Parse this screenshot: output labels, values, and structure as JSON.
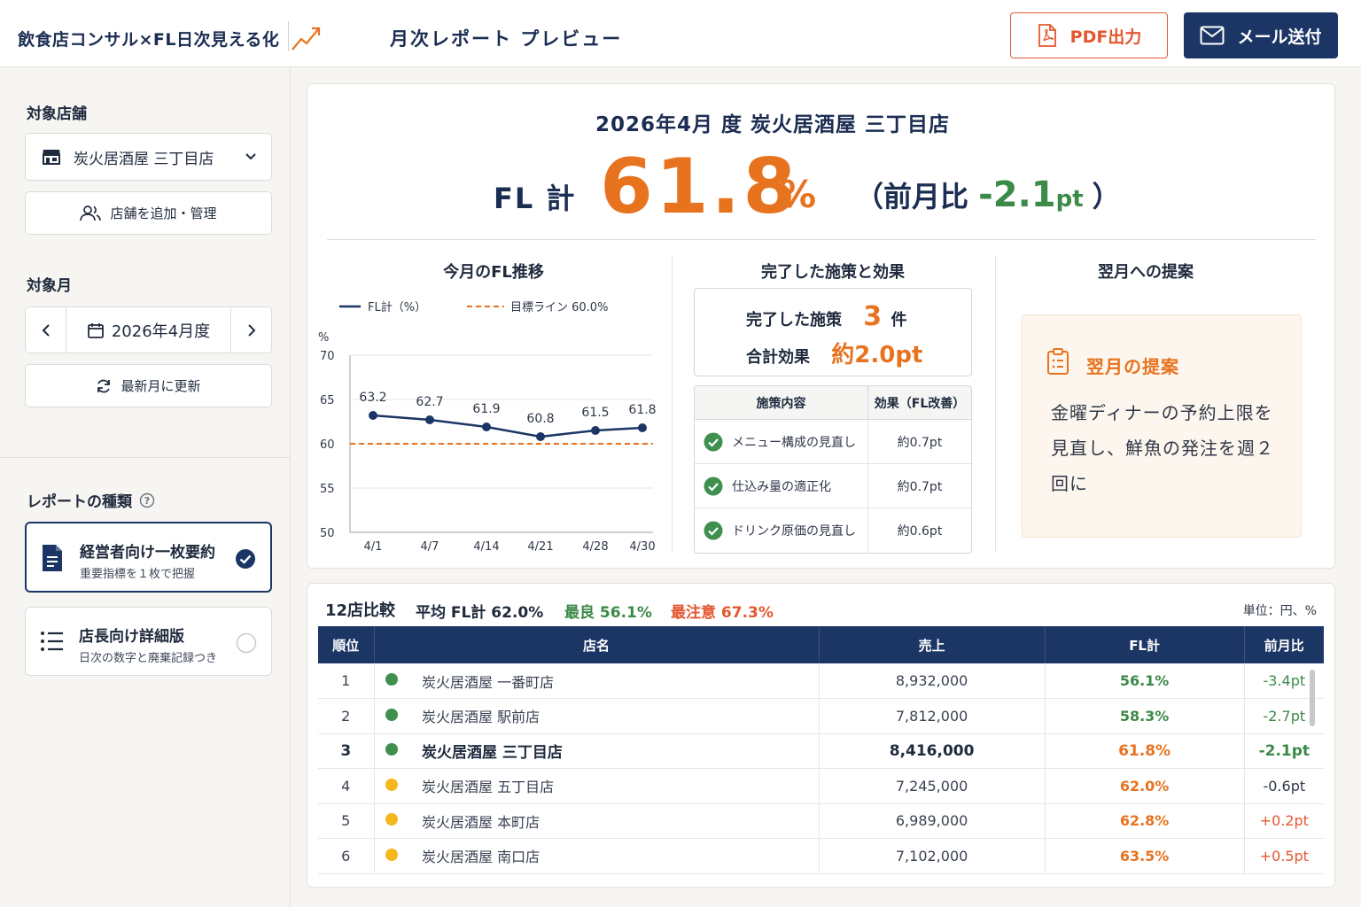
{
  "header": {
    "brand": "飲食店コンサル×FL日次見える化",
    "page_title": "月次レポート プレビュー",
    "pdf_label": "PDF出力",
    "mail_label": "メール送付"
  },
  "sidebar": {
    "store_label": "対象店舗",
    "store_selected": "炭火居酒屋 三丁目店",
    "store_manage": "店舗を追加・管理",
    "month_label": "対象月",
    "month_value": "2026年4月度",
    "refresh_label": "最新月に更新",
    "report_type_label": "レポートの種類",
    "report_types": [
      {
        "title": "経営者向け一枚要約",
        "subtitle": "重要指標を１枚で把握",
        "selected": true
      },
      {
        "title": "店長向け詳細版",
        "subtitle": "日次の数字と廃棄記録つき",
        "selected": false
      }
    ]
  },
  "report": {
    "title": "2026年4月 度 炭火居酒屋 三丁目店",
    "fl_label": "FL 計",
    "fl_value": "61.8",
    "fl_unit": "%",
    "prev_open": "（前月比 ",
    "prev_diff": "-2.1",
    "prev_unit": "pt",
    "prev_close": "）"
  },
  "trend": {
    "section_title": "今月のFL推移",
    "legend_fl": "FL計（%）",
    "legend_target": "目標ライン 60.0%",
    "y_unit": "%"
  },
  "chart_data": {
    "type": "line",
    "x": [
      "4/1",
      "4/7",
      "4/14",
      "4/21",
      "4/28",
      "4/30"
    ],
    "series": [
      {
        "name": "FL計（%）",
        "values": [
          63.2,
          62.7,
          61.9,
          60.8,
          61.5,
          61.8
        ]
      },
      {
        "name": "目標ライン 60.0%",
        "values": [
          60,
          60,
          60,
          60,
          60,
          60
        ]
      }
    ],
    "yticks": [
      50,
      55,
      60,
      65,
      70
    ],
    "ylim": [
      50,
      70
    ],
    "ylabel": "%",
    "colors": {
      "fl": "#1b3565",
      "target": "#e8731f"
    }
  },
  "measures": {
    "section_title": "完了した施策と効果",
    "done_label": "完了した施策",
    "done_count": "3",
    "done_unit": "件",
    "effect_label": "合計効果",
    "effect_value": "約2.0pt",
    "col_content": "施策内容",
    "col_effect": "効果（FL改善）",
    "items": [
      {
        "name": "メニュー構成の見直し",
        "effect": "約0.7pt"
      },
      {
        "name": "仕込み量の適正化",
        "effect": "約0.7pt"
      },
      {
        "name": "ドリンク原価の見直し",
        "effect": "約0.6pt"
      }
    ]
  },
  "proposal": {
    "section_title": "翌月への提案",
    "box_title": "翌月の提案",
    "text": "金曜ディナーの予約上限を見直し、鮮魚の発注を週２回に"
  },
  "comparison": {
    "title": "12店比較",
    "avg": "平均 FL計 62.0%",
    "best": "最良 56.1%",
    "worst": "最注意 67.3%",
    "unit_note": "単位：円、%",
    "headers": [
      "順位",
      "店名",
      "売上",
      "FL計",
      "前月比"
    ],
    "rows": [
      {
        "rank": "1",
        "status": "green",
        "name": "炭火居酒屋 一番町店",
        "sales": "8,932,000",
        "fl": "56.1%",
        "diff": "-3.4pt"
      },
      {
        "rank": "2",
        "status": "green",
        "name": "炭火居酒屋 駅前店",
        "sales": "7,812,000",
        "fl": "58.3%",
        "diff": "-2.7pt"
      },
      {
        "rank": "3",
        "status": "green",
        "name": "炭火居酒屋 三丁目店",
        "sales": "8,416,000",
        "fl": "61.8%",
        "diff": "-2.1pt"
      },
      {
        "rank": "4",
        "status": "yellow",
        "name": "炭火居酒屋 五丁目店",
        "sales": "7,245,000",
        "fl": "62.0%",
        "diff": "-0.6pt"
      },
      {
        "rank": "5",
        "status": "yellow",
        "name": "炭火居酒屋 本町店",
        "sales": "6,989,000",
        "fl": "62.8%",
        "diff": "+0.2pt"
      },
      {
        "rank": "6",
        "status": "yellow",
        "name": "炭火居酒屋 南口店",
        "sales": "7,102,000",
        "fl": "63.5%",
        "diff": "+0.5pt"
      }
    ]
  },
  "colors": {
    "navy": "#1b3565",
    "orange": "#e8731f",
    "green": "#3b8a48",
    "red": "#e4572e",
    "dot_green": "#3f8f4f",
    "dot_yellow": "#f4b81c"
  }
}
